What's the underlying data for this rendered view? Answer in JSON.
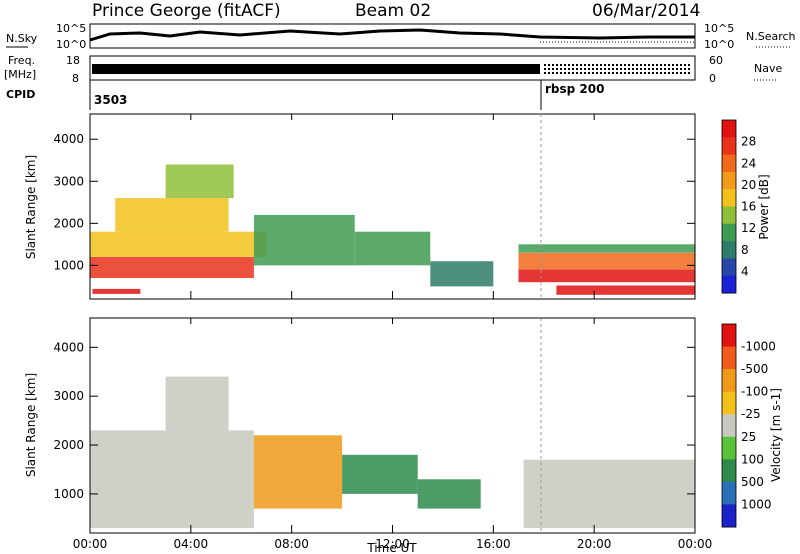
{
  "header": {
    "station": "Prince George (fitACF)",
    "beam": "Beam 02",
    "date": "06/Mar/2014"
  },
  "panels": {
    "nsky_label": "N.Sky",
    "nsearch_label": "N.Search",
    "noise_ticks_left": [
      "10^5",
      "10^0"
    ],
    "noise_ticks_right": [
      "10^5",
      "10^0"
    ],
    "freq_label_1": "Freq.",
    "freq_label_2": "[MHz]",
    "freq_ticks": [
      "18",
      "8"
    ],
    "nave_label": "Nave",
    "nave_ticks": [
      "60",
      "0"
    ],
    "cpid_label": "CPID",
    "cpid_1": "3503",
    "cpid_2": "rbsp 200"
  },
  "chart_data": [
    {
      "type": "heatmap",
      "parameter": "Power",
      "ylabel": "Slant Range [km]",
      "xlabel": "Time UT",
      "x_ticks": [
        "00:00",
        "04:00",
        "08:00",
        "12:00",
        "16:00",
        "20:00",
        "00:00"
      ],
      "x_range_hours": [
        0,
        24
      ],
      "y_ticks": [
        1000,
        2000,
        3000,
        4000
      ],
      "ylim": [
        200,
        4600
      ],
      "colorbar": {
        "label": "Power [dB]",
        "ticks": [
          4,
          8,
          12,
          16,
          20,
          24,
          28
        ],
        "colors": [
          "#1a22d8",
          "#2548a8",
          "#2e7d6a",
          "#3f9a52",
          "#8fbf3a",
          "#f2c21a",
          "#f39a1a",
          "#f06a1a",
          "#e8321a",
          "#e01212"
        ]
      },
      "regions": [
        {
          "t0": 0.1,
          "t1": 2.0,
          "r0": 320,
          "r1": 440,
          "level": 0.95
        },
        {
          "t0": 0.0,
          "t1": 6.5,
          "r0": 700,
          "r1": 1200,
          "level": 0.85
        },
        {
          "t0": 0.0,
          "t1": 7.0,
          "r0": 1200,
          "r1": 1800,
          "level": 0.6
        },
        {
          "t0": 1.0,
          "t1": 5.5,
          "r0": 1800,
          "r1": 2600,
          "level": 0.55
        },
        {
          "t0": 3.0,
          "t1": 5.7,
          "r0": 2600,
          "r1": 3400,
          "level": 0.45
        },
        {
          "t0": 6.5,
          "t1": 10.5,
          "r0": 1000,
          "r1": 2200,
          "level": 0.35
        },
        {
          "t0": 10.5,
          "t1": 13.5,
          "r0": 1000,
          "r1": 1800,
          "level": 0.3
        },
        {
          "t0": 13.5,
          "t1": 16.0,
          "r0": 500,
          "r1": 1100,
          "level": 0.2
        },
        {
          "t0": 17.0,
          "t1": 24.0,
          "r0": 1300,
          "r1": 1500,
          "level": 0.35
        },
        {
          "t0": 17.0,
          "t1": 24.0,
          "r0": 900,
          "r1": 1300,
          "level": 0.75
        },
        {
          "t0": 17.0,
          "t1": 24.0,
          "r0": 600,
          "r1": 900,
          "level": 0.95
        },
        {
          "t0": 18.5,
          "t1": 24.0,
          "r0": 300,
          "r1": 520,
          "level": 1.0
        }
      ]
    },
    {
      "type": "heatmap",
      "parameter": "Velocity",
      "ylabel": "Slant Range [km]",
      "xlabel": "Time UT",
      "x_ticks": [
        "00:00",
        "04:00",
        "08:00",
        "12:00",
        "16:00",
        "20:00",
        "00:00"
      ],
      "x_range_hours": [
        0,
        24
      ],
      "y_ticks": [
        1000,
        2000,
        3000,
        4000
      ],
      "ylim": [
        200,
        4600
      ],
      "colorbar": {
        "label": "Velocity [m s-1]",
        "ticks": [
          "1000",
          "500",
          "100",
          "25",
          "-25",
          "-100",
          "-500",
          "-1000"
        ],
        "colors": [
          "#1a22c8",
          "#2a6fb8",
          "#2e8a4a",
          "#5cc23a",
          "#c8c8c0",
          "#f2c21a",
          "#f09a1a",
          "#f05a1a",
          "#e01212"
        ]
      },
      "regions": [
        {
          "t0": 0.0,
          "t1": 6.5,
          "r0": 300,
          "r1": 2300,
          "level": 0.5
        },
        {
          "t0": 3.0,
          "t1": 5.5,
          "r0": 2300,
          "r1": 3400,
          "level": 0.5
        },
        {
          "t0": 6.5,
          "t1": 10.0,
          "r0": 700,
          "r1": 2200,
          "level": 0.78
        },
        {
          "t0": 10.0,
          "t1": 13.0,
          "r0": 1000,
          "r1": 1800,
          "level": 0.3
        },
        {
          "t0": 13.0,
          "t1": 15.5,
          "r0": 700,
          "r1": 1300,
          "level": 0.25
        },
        {
          "t0": 17.2,
          "t1": 24.0,
          "r0": 300,
          "r1": 1700,
          "level": 0.5
        }
      ]
    }
  ]
}
